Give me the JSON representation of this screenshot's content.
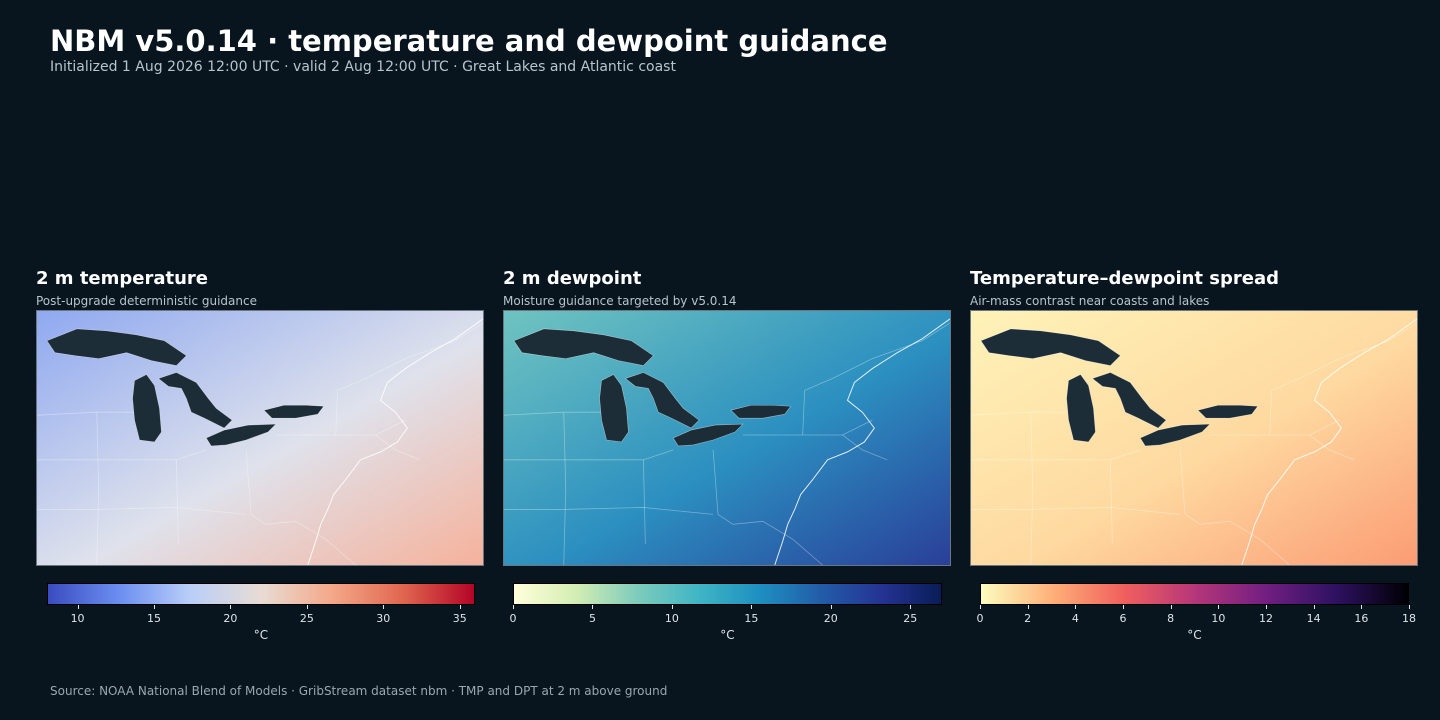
{
  "header": {
    "title": "NBM v5.0.14 · temperature and dewpoint guidance",
    "subtitle": "Initialized 1 Aug 2026 12:00 UTC · valid 2 Aug 12:00 UTC · Great Lakes and Atlantic coast"
  },
  "panels": [
    {
      "title": "2 m temperature",
      "subtitle": "Post-upgrade deterministic guidance",
      "colorbar": {
        "min": 8,
        "max": 36,
        "ticks": [
          10,
          15,
          20,
          25,
          30,
          35
        ],
        "unit": "°C",
        "colors": [
          "#3a4cc0",
          "#6b8ef0",
          "#b9cef8",
          "#e8dcd4",
          "#f4a888",
          "#e0664f",
          "#b40426"
        ]
      },
      "palette": {
        "cool": "#8fa9f0",
        "mid": "#dfe2ec",
        "warm": "#f6b29b",
        "lake": "#1c2d38"
      }
    },
    {
      "title": "2 m dewpoint",
      "subtitle": "Moisture guidance targeted by v5.0.14",
      "colorbar": {
        "min": 0,
        "max": 27,
        "ticks": [
          0,
          5,
          10,
          15,
          20,
          25
        ],
        "unit": "°C",
        "colors": [
          "#ffffd9",
          "#d4eeb4",
          "#7fccbb",
          "#41b6c4",
          "#1d91c0",
          "#225ea8",
          "#253494",
          "#081d58"
        ]
      },
      "palette": {
        "cool": "#6fc4c0",
        "mid": "#2b8fc0",
        "warm": "#2a3f99",
        "lake": "#1c2d38"
      }
    },
    {
      "title": "Temperature–dewpoint spread",
      "subtitle": "Air-mass contrast near coasts and lakes",
      "colorbar": {
        "min": 0,
        "max": 18,
        "ticks": [
          0,
          2,
          4,
          6,
          8,
          10,
          12,
          14,
          16,
          18
        ],
        "unit": "°C",
        "colors": [
          "#fcfdbf",
          "#feb078",
          "#f1605d",
          "#b63679",
          "#721f81",
          "#2d1160",
          "#000004"
        ]
      },
      "palette": {
        "cool": "#fef3b8",
        "mid": "#fed9a0",
        "warm": "#fb9c74",
        "lake": "#1c2d38"
      }
    }
  ],
  "footer": {
    "source": "Source: NOAA National Blend of Models · GribStream dataset nbm · TMP and DPT at 2 m above ground"
  }
}
